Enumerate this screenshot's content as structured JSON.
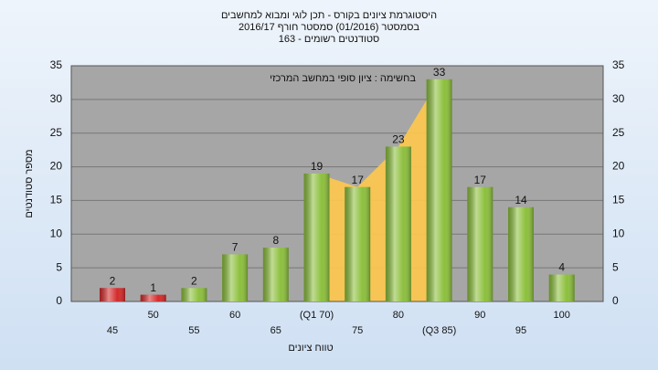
{
  "chart_data": {
    "type": "bar",
    "title": "היסטוגרמת ציונים בקורס - תכן לוגי ומבוא למחשבים",
    "subtitle": "בסמסטר  (01/2016)  סמסטר חורף 2016/17",
    "subtitle2": "סטודנטים רשומים - 163",
    "annotation": "בחשימה : ציון סופי במחשב המרכזי",
    "x_label": "טווח ציונים",
    "y_label": "מספר סטודנטים",
    "categories": [
      "45",
      "50",
      "55",
      "60",
      "65",
      "(Q1 70)",
      "75",
      "80",
      "(Q3 85)",
      "90",
      "95",
      "100"
    ],
    "values": [
      2,
      1,
      2,
      7,
      8,
      19,
      17,
      23,
      33,
      17,
      14,
      4
    ],
    "colors": [
      "#d42a2a",
      "#d42a2a",
      "#8cbf3c",
      "#8cbf3c",
      "#8cbf3c",
      "#8cbf3c",
      "#8cbf3c",
      "#8cbf3c",
      "#8cbf3c",
      "#8cbf3c",
      "#8cbf3c",
      "#8cbf3c"
    ],
    "area_color": "#ffc94d",
    "ylim": [
      0,
      35
    ],
    "yticks": [
      0,
      5,
      10,
      15,
      20,
      25,
      30,
      35
    ],
    "grid": true
  }
}
